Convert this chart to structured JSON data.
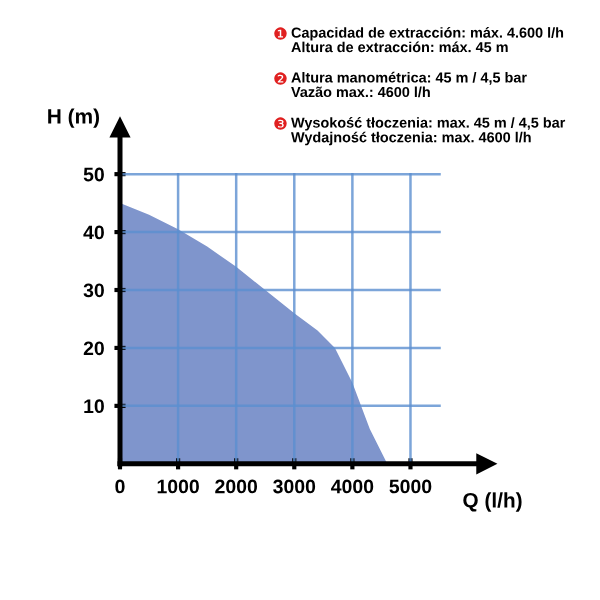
{
  "chart_data": {
    "type": "area",
    "xlabel": "Q (l/h)",
    "ylabel": "H (m)",
    "x": [
      0,
      500,
      1000,
      1500,
      2000,
      2500,
      3000,
      3400,
      3700,
      4000,
      4300,
      4600
    ],
    "values": [
      45,
      43,
      40.5,
      37.5,
      34,
      30,
      26,
      23,
      20,
      14,
      6,
      0
    ],
    "color": "#7f95cc",
    "xlim": [
      0,
      6300
    ],
    "ylim": [
      0,
      58
    ],
    "xticks": [
      0,
      1000,
      2000,
      3000,
      4000,
      5000
    ],
    "yticks": [
      10,
      20,
      30,
      40,
      50
    ],
    "grid": true,
    "annotations": [
      "❶ Capacidad de extracción: máx. 4.600 l/h\nAltura de extracción: máx. 45 m",
      "❷ Altura manométrica: 45 m / 4,5 bar\nVazão max.: 4600 l/h",
      "❸ Wysokość tłoczenia: max. 45 m / 4,5 bar\nWydajność tłoczenia: max. 4600 l/h"
    ]
  }
}
